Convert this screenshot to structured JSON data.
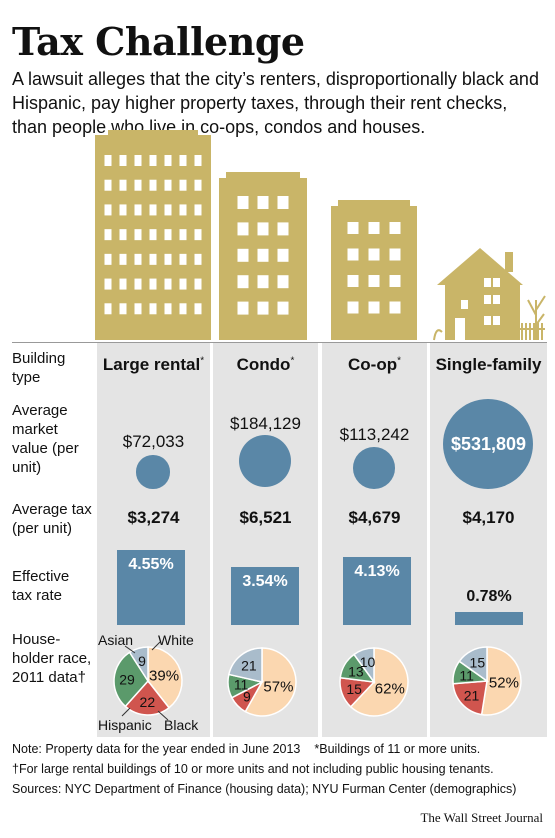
{
  "header": {
    "title": "Tax Challenge",
    "subtitle": "A lawsuit alleges that the city’s renters, disproportionally black and Hispanic, pay higher property taxes, through their rent checks, than people who live in co-ops, condos and houses."
  },
  "row_labels": {
    "building_type": "Building type",
    "market_value": "Average market value (per unit)",
    "average_tax": "Average tax (per unit)",
    "effective_rate": "Effective tax rate",
    "race": "House-holder race, 2011 data†"
  },
  "colors": {
    "gold": "#c9b568",
    "blue": "#5a87a7",
    "white_slice": "#fbd7b0",
    "black_slice": "#d0554e",
    "hispanic_slice": "#5b9a6b",
    "asian_slice": "#a9bccb"
  },
  "chart_data": {
    "type": "table",
    "columns": [
      {
        "name": "Large rental",
        "marker": "*",
        "market_value": 72033,
        "market_value_label": "$72,033",
        "avg_tax": 3274,
        "avg_tax_label": "$3,274",
        "effective_rate": 4.55,
        "effective_rate_label": "4.55%",
        "race": {
          "White": 39,
          "Black": 22,
          "Hispanic": 29,
          "Asian": 9
        }
      },
      {
        "name": "Condo",
        "marker": "*",
        "market_value": 184129,
        "market_value_label": "$184,129",
        "avg_tax": 6521,
        "avg_tax_label": "$6,521",
        "effective_rate": 3.54,
        "effective_rate_label": "3.54%",
        "race": {
          "White": 57,
          "Black": 9,
          "Hispanic": 11,
          "Asian": 21
        }
      },
      {
        "name": "Co-op",
        "marker": "*",
        "market_value": 113242,
        "market_value_label": "$113,242",
        "avg_tax": 4679,
        "avg_tax_label": "$4,679",
        "effective_rate": 4.13,
        "effective_rate_label": "4.13%",
        "race": {
          "White": 62,
          "Black": 15,
          "Hispanic": 13,
          "Asian": 10
        }
      },
      {
        "name": "Single-family",
        "marker": "",
        "market_value": 531809,
        "market_value_label": "$531,809",
        "avg_tax": 4170,
        "avg_tax_label": "$4,170",
        "effective_rate": 0.78,
        "effective_rate_label": "0.78%",
        "race": {
          "White": 52,
          "Black": 21,
          "Hispanic": 11,
          "Asian": 15
        }
      }
    ],
    "pie_legend": {
      "asian": "Asian",
      "white": "White",
      "hispanic": "Hispanic",
      "black": "Black"
    }
  },
  "notes": {
    "line1": "Note: Property data for the year ended in June 2013",
    "line1b": "*Buildings of 11 or more units.",
    "line2": "†For large rental buildings of 10 or more units and not including public housing tenants.",
    "line3": "Sources: NYC Department of Finance (housing data); NYU Furman Center (demographics)",
    "credit": "The Wall Street Journal"
  }
}
